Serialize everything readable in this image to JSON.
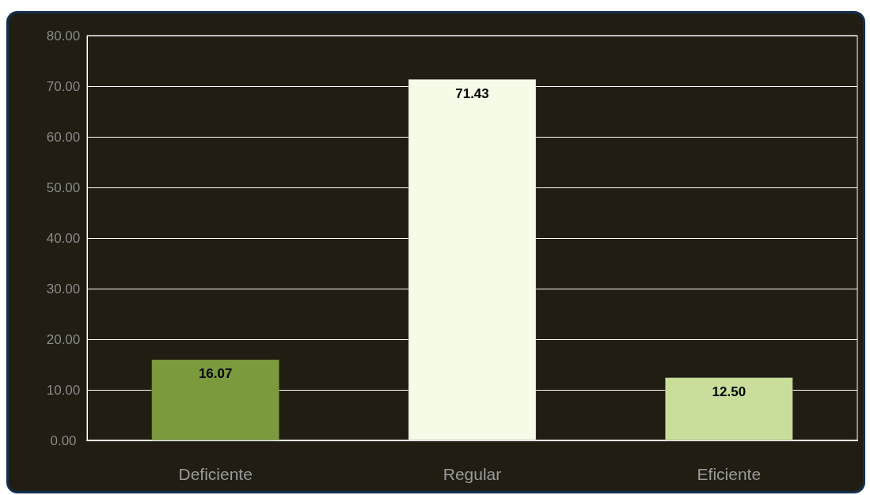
{
  "chart_data": {
    "type": "bar",
    "categories": [
      "Deficiente",
      "Regular",
      "Eficiente"
    ],
    "values": [
      16.07,
      71.43,
      12.5
    ],
    "colors": [
      "#7b9a3e",
      "#f6fbe7",
      "#c9de9b"
    ],
    "value_labels": [
      "16.07",
      "71.43",
      "12.50"
    ],
    "ylim": [
      0,
      80
    ],
    "yticks": [
      {
        "value": 0,
        "label": "0.00"
      },
      {
        "value": 10,
        "label": "10.00"
      },
      {
        "value": 20,
        "label": "20.00"
      },
      {
        "value": 30,
        "label": "30.00"
      },
      {
        "value": 40,
        "label": "40.00"
      },
      {
        "value": 50,
        "label": "50.00"
      },
      {
        "value": 60,
        "label": "60.00"
      },
      {
        "value": 70,
        "label": "70.00"
      },
      {
        "value": 80,
        "label": "80.00"
      }
    ],
    "grid": "y"
  }
}
